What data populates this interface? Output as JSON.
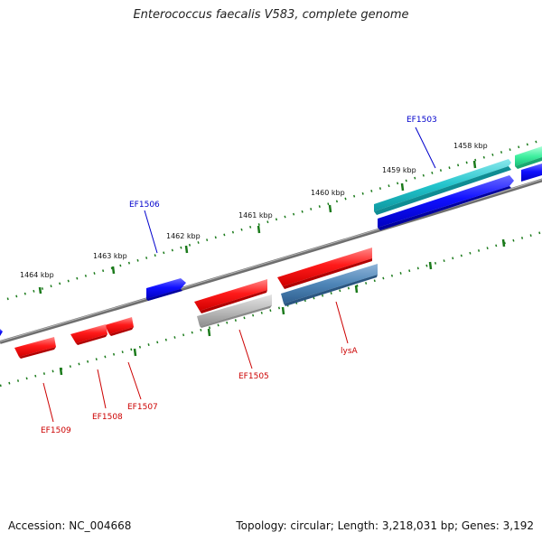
{
  "map": {
    "title": "Enterococcus faecalis V583, complete genome",
    "accession": "Accession: NC_004668",
    "summary": "Topology: circular; Length: 3,218,031 bp; Genes: 3,192"
  },
  "scale": {
    "ticks": [
      {
        "label": "1458 kbp"
      },
      {
        "label": "1459 kbp"
      },
      {
        "label": "1460 kbp"
      },
      {
        "label": "1461 kbp"
      },
      {
        "label": "1462 kbp"
      },
      {
        "label": "1463 kbp"
      },
      {
        "label": "1464 kbp"
      }
    ]
  },
  "genes": [
    {
      "label": "EF1503",
      "strand": "forward",
      "color": "#0000cc"
    },
    {
      "label": "EF1505",
      "strand": "reverse",
      "color": "#cc0000"
    },
    {
      "label": "EF1506",
      "strand": "forward",
      "color": "#0000cc"
    },
    {
      "label": "EF1507",
      "strand": "reverse",
      "color": "#cc0000"
    },
    {
      "label": "EF1508",
      "strand": "reverse",
      "color": "#cc0000"
    },
    {
      "label": "EF1509",
      "strand": "reverse",
      "color": "#cc0000"
    },
    {
      "label": "lysA",
      "strand": "reverse",
      "color": "#cc0000"
    }
  ],
  "colors": {
    "forward_cds": "#0000ff",
    "reverse_cds": "#ff0000",
    "backbone": "#777777",
    "ticks": "#1a7a1a",
    "teal_feature": "#20c0c8",
    "steelblue_feature": "#4f86b8",
    "gray_feature": "#bbbbbb",
    "green_feature": "#40f0a0"
  }
}
